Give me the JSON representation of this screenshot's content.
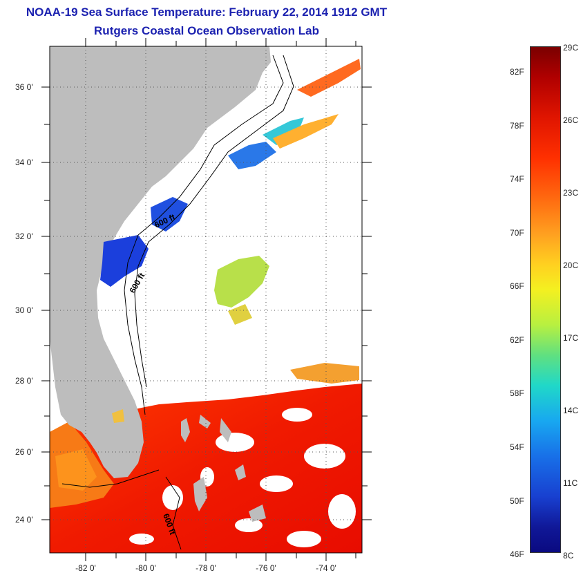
{
  "header": {
    "title": "NOAA-19 Sea Surface Temperature:  February 22, 2014 1912 GMT",
    "subtitle": "Rutgers Coastal Ocean Observation Lab"
  },
  "map": {
    "lat_labels": [
      "36 0'",
      "34 0'",
      "32 0'",
      "30 0'",
      "28 0'",
      "26 0'",
      "24 0'"
    ],
    "lon_labels": [
      "-82 0'",
      "-80 0'",
      "-78 0'",
      "-76 0'",
      "-74 0'"
    ],
    "contour_labels": [
      "600 ft",
      "600 ft",
      "600 ft"
    ],
    "land_color": "#bdbdbd"
  },
  "colorbar": {
    "fahrenheit": [
      "82F",
      "78F",
      "74F",
      "70F",
      "66F",
      "62F",
      "58F",
      "54F",
      "50F",
      "46F"
    ],
    "celsius": [
      "29C",
      "26C",
      "23C",
      "20C",
      "17C",
      "14C",
      "11C",
      "8C"
    ]
  }
}
